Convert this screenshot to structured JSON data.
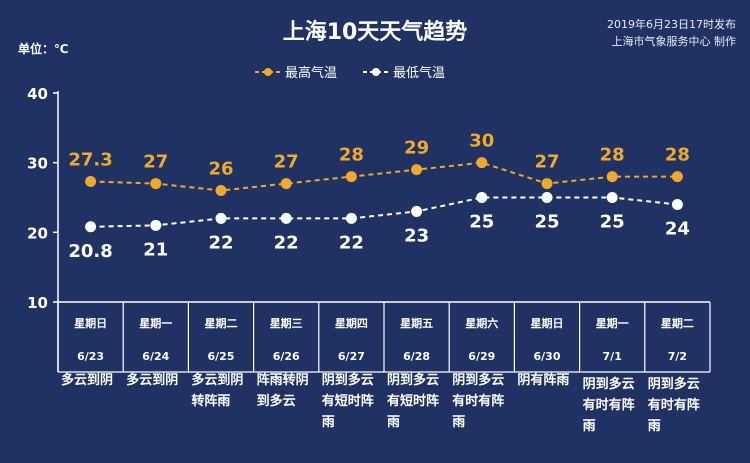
{
  "title": "上海10天天气趋势",
  "publish_time": "2019年6月23日17时发布",
  "publisher": "上海市气象服务中心 制作",
  "unit_label": "单位：℃",
  "colors": {
    "background": "#1f3263",
    "high": "#f0a928",
    "low": "#ffffff",
    "axis": "#ffffff"
  },
  "chart_data": {
    "type": "line",
    "title": "上海10天天气趋势",
    "ylim": [
      10,
      40
    ],
    "yticks": [
      10,
      20,
      30,
      40
    ],
    "grid": false,
    "legend_position": "top-center",
    "categories": [
      "6/23",
      "6/24",
      "6/25",
      "6/26",
      "6/27",
      "6/28",
      "6/29",
      "6/30",
      "7/1",
      "7/2"
    ],
    "weekdays": [
      "星期日",
      "星期一",
      "星期二",
      "星期三",
      "星期四",
      "星期五",
      "星期六",
      "星期日",
      "星期一",
      "星期二"
    ],
    "weather": [
      "多云到阴",
      "多云到阴",
      "多云到阴转阵雨",
      "阵雨转阴到多云",
      "阴到多云有短时阵雨",
      "阴到多云有短时阵雨",
      "阴到多云有时有阵雨",
      "阴有阵雨",
      "阴到多云有时有阵雨",
      "阴到多云有时有阵雨"
    ],
    "series": [
      {
        "name": "最高气温",
        "values": [
          27.3,
          27,
          26,
          27,
          28,
          29,
          30,
          27,
          28,
          28
        ],
        "labels": [
          "27.3",
          "27",
          "26",
          "27",
          "28",
          "29",
          "30",
          "27",
          "28",
          "28"
        ]
      },
      {
        "name": "最低气温",
        "values": [
          20.8,
          21,
          22,
          22,
          22,
          23,
          25,
          25,
          25,
          24
        ],
        "labels": [
          "20.8",
          "21",
          "22",
          "22",
          "22",
          "23",
          "25",
          "25",
          "25",
          "24"
        ]
      }
    ]
  }
}
